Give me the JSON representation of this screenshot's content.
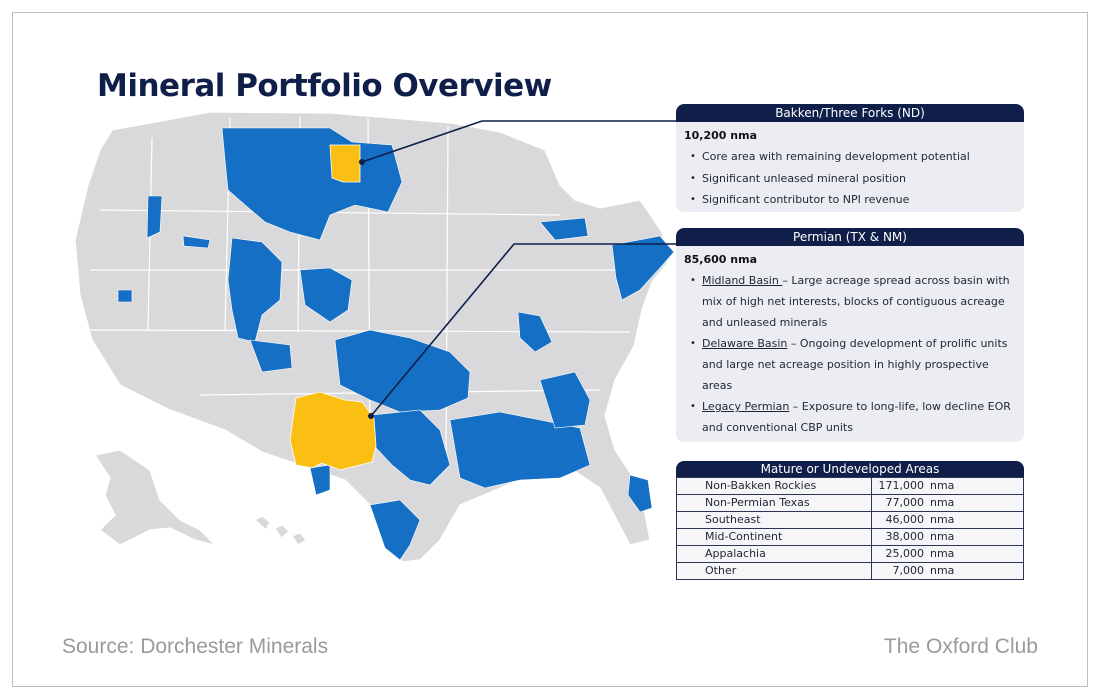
{
  "title": "Mineral Portfolio Overview",
  "colors": {
    "navy": "#0f1f4a",
    "county_blue": "#1570c5",
    "highlight_gold": "#fbbe12",
    "land_gray": "#d9d9db"
  },
  "callouts": {
    "bakken": {
      "header": "Bakken/Three Forks (ND)",
      "nma": "10,200 nma",
      "bullets": [
        "Core area with remaining development potential",
        "Significant unleased mineral position",
        "Significant contributor to NPI revenue"
      ]
    },
    "permian": {
      "header": "Permian (TX & NM)",
      "nma": "85,600 nma",
      "bullets": [
        {
          "lead": "Midland Basin ",
          "text": "– Large acreage spread across basin with mix of high net interests, blocks of contiguous acreage and unleased minerals"
        },
        {
          "lead": "Delaware Basin",
          "text": " – Ongoing development of prolific units and large net acreage position in highly prospective areas"
        },
        {
          "lead": "Legacy Permian",
          "text": " – Exposure to long-life, low decline EOR and conventional CBP units"
        }
      ]
    }
  },
  "mature_areas": {
    "header": "Mature or Undeveloped Areas",
    "rows": [
      {
        "name": "Non-Bakken Rockies",
        "value": "171,000",
        "unit": "nma"
      },
      {
        "name": "Non-Permian Texas",
        "value": "77,000",
        "unit": "nma"
      },
      {
        "name": "Southeast",
        "value": "46,000",
        "unit": "nma"
      },
      {
        "name": "Mid-Continent",
        "value": "38,000",
        "unit": "nma"
      },
      {
        "name": "Appalachia",
        "value": "25,000",
        "unit": "nma"
      },
      {
        "name": "Other",
        "value": "7,000",
        "unit": "nma"
      }
    ]
  },
  "footer": {
    "source": "Source: Dorchester Minerals",
    "brand": "The Oxford Club"
  }
}
